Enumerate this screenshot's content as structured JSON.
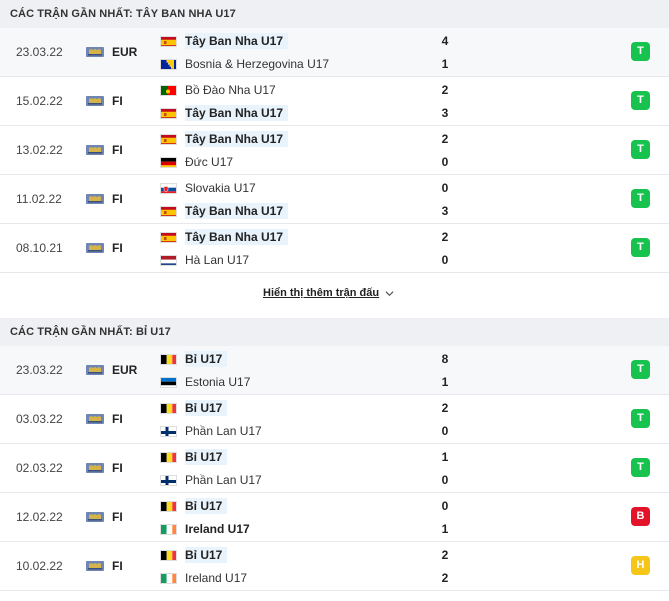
{
  "colors": {
    "win": "#17c24f",
    "loss": "#e3132a",
    "draw": "#f5c518",
    "highlight_bg": "#e9f3fc",
    "header_bg": "#eef0f3"
  },
  "section1": {
    "title": "CÁC TRẬN GẦN NHẤT: TÂY BAN NHA U17",
    "matches": [
      {
        "date": "23.03.22",
        "comp": "EUR",
        "team1": "Tây Ban Nha U17",
        "team1_flag": "spain",
        "team1_hl": true,
        "score1": "4",
        "team2": "Bosnia & Herzegovina U17",
        "team2_flag": "bosnia",
        "team2_hl": false,
        "score2": "1",
        "result": "T",
        "result_color": "win"
      },
      {
        "date": "15.02.22",
        "comp": "FI",
        "team1": "Bồ Đào Nha U17",
        "team1_flag": "portugal",
        "team1_hl": false,
        "score1": "2",
        "team2": "Tây Ban Nha U17",
        "team2_flag": "spain",
        "team2_hl": true,
        "score2": "3",
        "result": "T",
        "result_color": "win"
      },
      {
        "date": "13.02.22",
        "comp": "FI",
        "team1": "Tây Ban Nha U17",
        "team1_flag": "spain",
        "team1_hl": true,
        "score1": "2",
        "team2": "Đức U17",
        "team2_flag": "germany",
        "team2_hl": false,
        "score2": "0",
        "result": "T",
        "result_color": "win"
      },
      {
        "date": "11.02.22",
        "comp": "FI",
        "team1": "Slovakia U17",
        "team1_flag": "slovakia",
        "team1_hl": false,
        "score1": "0",
        "team2": "Tây Ban Nha U17",
        "team2_flag": "spain",
        "team2_hl": true,
        "score2": "3",
        "result": "T",
        "result_color": "win"
      },
      {
        "date": "08.10.21",
        "comp": "FI",
        "team1": "Tây Ban Nha U17",
        "team1_flag": "spain",
        "team1_hl": true,
        "score1": "2",
        "team2": "Hà Lan U17",
        "team2_flag": "netherlands",
        "team2_hl": false,
        "score2": "0",
        "result": "T",
        "result_color": "win"
      }
    ],
    "more_label": "Hiển thị thêm trận đấu"
  },
  "section2": {
    "title": "CÁC TRẬN GẦN NHẤT: BỈ U17",
    "matches": [
      {
        "date": "23.03.22",
        "comp": "EUR",
        "team1": "Bỉ U17",
        "team1_flag": "belgium",
        "team1_hl": true,
        "score1": "8",
        "team2": "Estonia U17",
        "team2_flag": "estonia",
        "team2_hl": false,
        "score2": "1",
        "result": "T",
        "result_color": "win"
      },
      {
        "date": "03.03.22",
        "comp": "FI",
        "team1": "Bỉ U17",
        "team1_flag": "belgium",
        "team1_hl": true,
        "score1": "2",
        "team2": "Phần Lan U17",
        "team2_flag": "finland",
        "team2_hl": false,
        "score2": "0",
        "result": "T",
        "result_color": "win"
      },
      {
        "date": "02.03.22",
        "comp": "FI",
        "team1": "Bỉ U17",
        "team1_flag": "belgium",
        "team1_hl": true,
        "score1": "1",
        "team2": "Phần Lan U17",
        "team2_flag": "finland",
        "team2_hl": false,
        "score2": "0",
        "result": "T",
        "result_color": "win"
      },
      {
        "date": "12.02.22",
        "comp": "FI",
        "team1": "Bỉ U17",
        "team1_flag": "belgium",
        "team1_hl": true,
        "score1": "0",
        "team2": "Ireland U17",
        "team2_flag": "ireland",
        "team2_hl": false,
        "team2_bold": true,
        "score2": "1",
        "result": "B",
        "result_color": "loss"
      },
      {
        "date": "10.02.22",
        "comp": "FI",
        "team1": "Bỉ U17",
        "team1_flag": "belgium",
        "team1_hl": true,
        "score1": "2",
        "team2": "Ireland U17",
        "team2_flag": "ireland",
        "team2_hl": false,
        "score2": "2",
        "result": "H",
        "result_color": "draw"
      }
    ]
  }
}
